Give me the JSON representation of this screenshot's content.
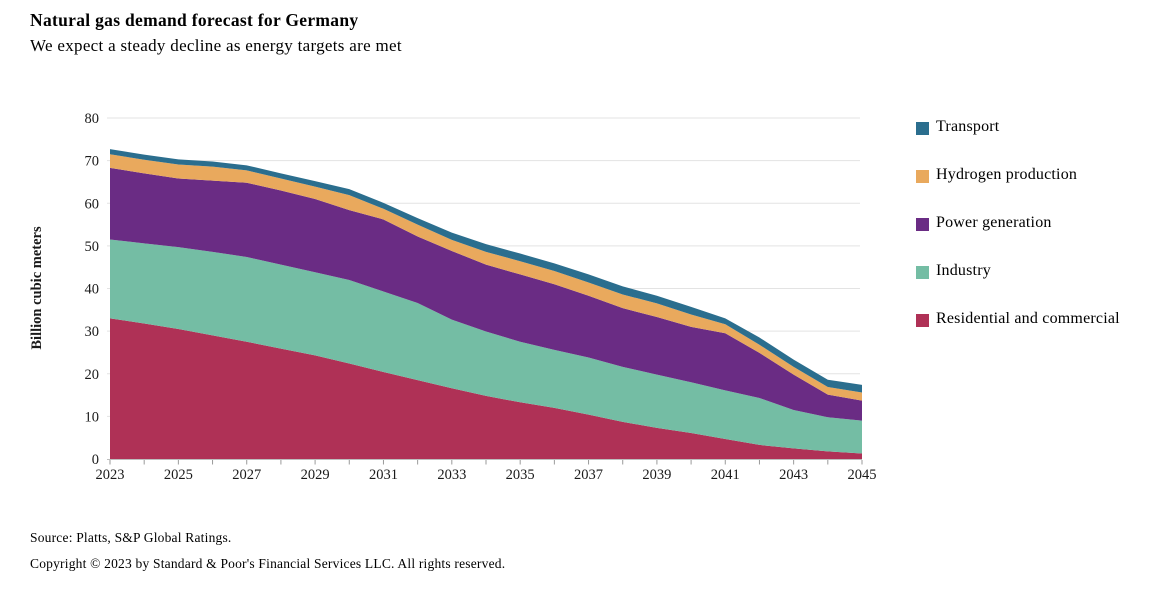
{
  "header": {
    "title": "Natural gas demand forecast for Germany",
    "subtitle": "We expect a steady decline as energy targets are met"
  },
  "chart_data": {
    "type": "area",
    "stacked": true,
    "title": "Natural gas demand forecast for Germany",
    "subtitle": "We expect a steady decline as energy targets are met",
    "xlabel": "",
    "ylabel": "Billion cubic meters",
    "ylim": [
      0,
      80
    ],
    "y_ticks": [
      0,
      10,
      20,
      30,
      40,
      50,
      60,
      70,
      80
    ],
    "x": [
      2023,
      2024,
      2025,
      2026,
      2027,
      2028,
      2029,
      2030,
      2031,
      2032,
      2033,
      2034,
      2035,
      2036,
      2037,
      2038,
      2039,
      2040,
      2041,
      2042,
      2043,
      2044,
      2045
    ],
    "x_tick_labels": [
      "2023",
      "2025",
      "2027",
      "2029",
      "2031",
      "2033",
      "2035",
      "2037",
      "2039",
      "2041",
      "2043",
      "2045"
    ],
    "grid": true,
    "grid_color": "#e3e3e3",
    "axis_color": "#bdbdbd",
    "tick_color": "#9a9a9a",
    "legend_position": "right",
    "series": [
      {
        "id": "residential",
        "name": "Residential and commercial",
        "color": "#af3156",
        "values": [
          33.0,
          31.8,
          30.5,
          29.0,
          27.5,
          25.9,
          24.3,
          22.4,
          20.4,
          18.5,
          16.6,
          14.8,
          13.3,
          12.0,
          10.4,
          8.7,
          7.3,
          6.1,
          4.7,
          3.3,
          2.5,
          1.8,
          1.3
        ]
      },
      {
        "id": "industry",
        "name": "Industry",
        "color": "#74bda4",
        "values": [
          18.5,
          18.8,
          19.2,
          19.6,
          19.9,
          19.7,
          19.5,
          19.6,
          18.9,
          18.1,
          16.1,
          15.1,
          14.2,
          13.6,
          13.4,
          12.9,
          12.5,
          11.9,
          11.4,
          11.0,
          9.0,
          8.0,
          7.7
        ]
      },
      {
        "id": "power-generation",
        "name": "Power generation",
        "color": "#6a2c84",
        "values": [
          16.8,
          16.4,
          16.1,
          16.7,
          17.4,
          17.4,
          17.2,
          16.4,
          16.9,
          15.6,
          16.1,
          15.7,
          15.8,
          15.4,
          14.5,
          13.8,
          13.5,
          13.0,
          13.4,
          10.6,
          8.3,
          5.3,
          4.7
        ]
      },
      {
        "id": "hydrogen-production",
        "name": "Hydrogen production",
        "color": "#e9a95d",
        "values": [
          3.2,
          3.2,
          3.3,
          3.3,
          2.9,
          2.8,
          2.9,
          3.5,
          2.5,
          2.8,
          2.6,
          3.0,
          3.1,
          3.1,
          3.1,
          3.2,
          3.2,
          2.9,
          2.1,
          1.9,
          1.8,
          1.8,
          1.9
        ]
      },
      {
        "id": "transport",
        "name": "Transport",
        "color": "#2b6e8e",
        "values": [
          1.2,
          1.2,
          1.2,
          1.2,
          1.2,
          1.2,
          1.3,
          1.4,
          1.4,
          1.5,
          1.7,
          1.8,
          1.8,
          1.8,
          1.9,
          1.9,
          1.8,
          1.8,
          1.4,
          1.7,
          1.7,
          1.7,
          1.8
        ]
      }
    ]
  },
  "legend": {
    "items": [
      {
        "id": "transport",
        "label": "Transport",
        "color": "#2b6e8e"
      },
      {
        "id": "hydrogen-production",
        "label": "Hydrogen production",
        "color": "#e9a95d"
      },
      {
        "id": "power-generation",
        "label": "Power generation",
        "color": "#6a2c84"
      },
      {
        "id": "industry",
        "label": "Industry",
        "color": "#74bda4"
      },
      {
        "id": "residential",
        "label": "Residential and commercial",
        "color": "#af3156"
      }
    ]
  },
  "footer": {
    "source": "Source: Platts, S&P Global Ratings.",
    "copyright": "Copyright © 2023 by Standard & Poor's Financial Services LLC. All rights reserved."
  }
}
